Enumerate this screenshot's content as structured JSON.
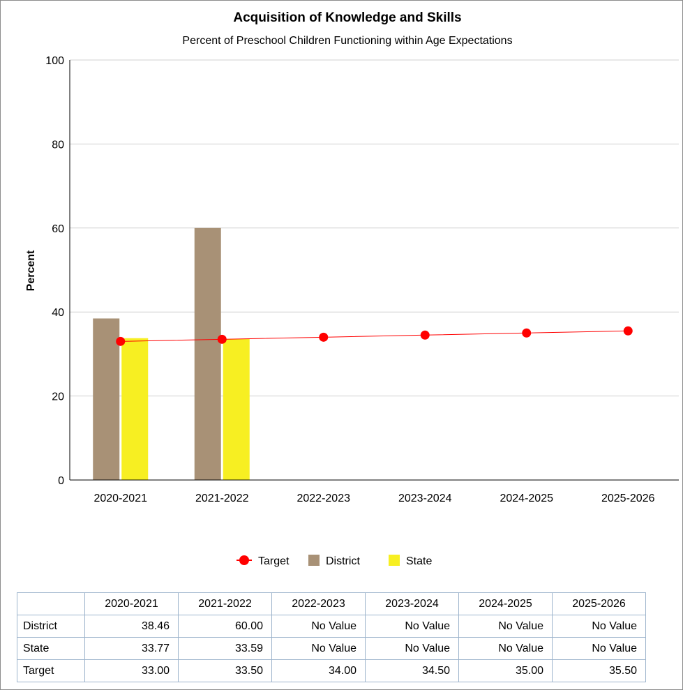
{
  "chart_data": {
    "type": "bar",
    "title": "Acquisition of Knowledge and Skills",
    "subtitle": "Percent of Preschool Children Functioning within Age Expectations",
    "ylabel": "Percent",
    "xlabel": "",
    "ylim": [
      0,
      100
    ],
    "yticks": [
      0,
      20,
      40,
      60,
      80,
      100
    ],
    "grid": true,
    "legend_position": "bottom",
    "categories": [
      "2020-2021",
      "2021-2022",
      "2022-2023",
      "2023-2024",
      "2024-2025",
      "2025-2026"
    ],
    "series": [
      {
        "name": "Target",
        "type": "line",
        "color": "#ff0000",
        "values": [
          33.0,
          33.5,
          34.0,
          34.5,
          35.0,
          35.5
        ]
      },
      {
        "name": "District",
        "type": "bar",
        "color": "#a89176",
        "values": [
          38.46,
          60.0,
          null,
          null,
          null,
          null
        ]
      },
      {
        "name": "State",
        "type": "bar",
        "color": "#f7ef22",
        "values": [
          33.77,
          33.59,
          null,
          null,
          null,
          null
        ]
      }
    ]
  },
  "table": {
    "columns": [
      "2020-2021",
      "2021-2022",
      "2022-2023",
      "2023-2024",
      "2024-2025",
      "2025-2026"
    ],
    "rows": [
      {
        "label": "District",
        "cells": [
          "38.46",
          "60.00",
          "No Value",
          "No Value",
          "No Value",
          "No Value"
        ]
      },
      {
        "label": "State",
        "cells": [
          "33.77",
          "33.59",
          "No Value",
          "No Value",
          "No Value",
          "No Value"
        ]
      },
      {
        "label": "Target",
        "cells": [
          "33.00",
          "33.50",
          "34.00",
          "34.50",
          "35.00",
          "35.50"
        ]
      }
    ]
  }
}
